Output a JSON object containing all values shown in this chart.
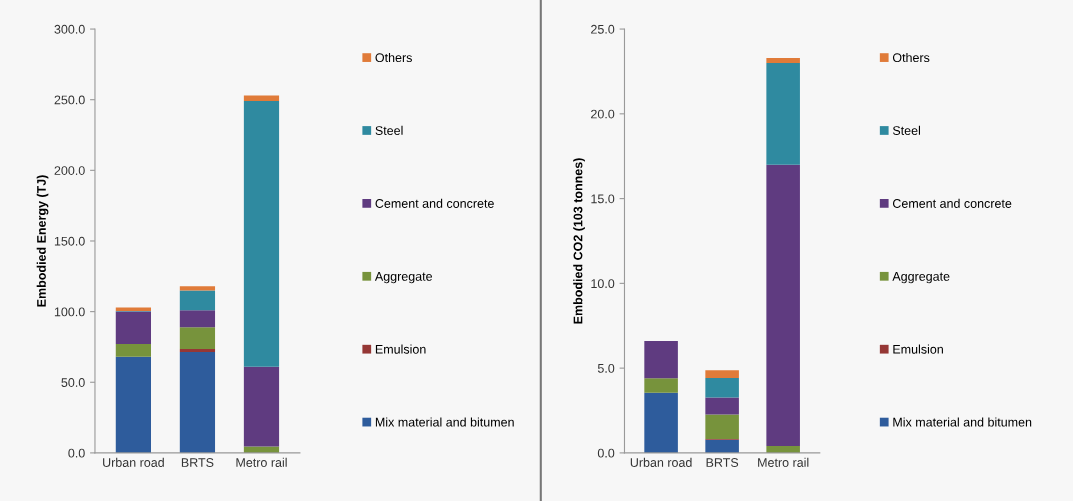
{
  "chart_data": [
    {
      "type": "bar",
      "stacked": true,
      "ylabel": "Embodied Energy (TJ)",
      "categories": [
        "Urban road",
        "BRTS",
        "Metro rail"
      ],
      "ylim": [
        0,
        300
      ],
      "yticks": [
        {
          "value": 0,
          "label": "0.0"
        },
        {
          "value": 50,
          "label": "50.0"
        },
        {
          "value": 100,
          "label": "100.0"
        },
        {
          "value": 150,
          "label": "150.0"
        },
        {
          "value": 200,
          "label": "200.0"
        },
        {
          "value": 250,
          "label": "250.0"
        },
        {
          "value": 300,
          "label": "300.0"
        }
      ],
      "legend": "right",
      "grid": false,
      "series": [
        {
          "name": "Mix material and bitumen",
          "color": "#2e5c9c",
          "values": [
            68,
            71.5,
            0
          ]
        },
        {
          "name": "Emulsion",
          "color": "#953735",
          "values": [
            0,
            2,
            0
          ]
        },
        {
          "name": "Aggregate",
          "color": "#77933c",
          "values": [
            9,
            15.5,
            4.5
          ]
        },
        {
          "name": "Cement and concrete",
          "color": "#5f3b80",
          "values": [
            23,
            12,
            56.5
          ]
        },
        {
          "name": "Steel",
          "color": "#2f8aa0",
          "values": [
            0.5,
            14,
            188
          ]
        },
        {
          "name": "Others",
          "color": "#e07b39",
          "values": [
            2.5,
            3,
            4
          ]
        }
      ]
    },
    {
      "type": "bar",
      "stacked": true,
      "ylabel": "Embodied CO2 (103 tonnes)",
      "categories": [
        "Urban road",
        "BRTS",
        "Metro rail"
      ],
      "ylim": [
        0,
        25
      ],
      "yticks": [
        {
          "value": 0,
          "label": "0.0"
        },
        {
          "value": 5,
          "label": "5.0"
        },
        {
          "value": 10,
          "label": "10.0"
        },
        {
          "value": 15,
          "label": "15.0"
        },
        {
          "value": 20,
          "label": "20.0"
        },
        {
          "value": 25,
          "label": "25.0"
        }
      ],
      "legend": "right",
      "grid": false,
      "series": [
        {
          "name": "Mix material and bitumen",
          "color": "#2e5c9c",
          "values": [
            3.55,
            0.77,
            0
          ]
        },
        {
          "name": "Emulsion",
          "color": "#953735",
          "values": [
            0,
            0.05,
            0
          ]
        },
        {
          "name": "Aggregate",
          "color": "#77933c",
          "values": [
            0.85,
            1.45,
            0.4
          ]
        },
        {
          "name": "Cement and concrete",
          "color": "#5f3b80",
          "values": [
            2.2,
            1.0,
            16.6
          ]
        },
        {
          "name": "Steel",
          "color": "#2f8aa0",
          "values": [
            0,
            1.15,
            6.0
          ]
        },
        {
          "name": "Others",
          "color": "#e07b39",
          "values": [
            0,
            0.45,
            0.3
          ]
        }
      ]
    }
  ]
}
